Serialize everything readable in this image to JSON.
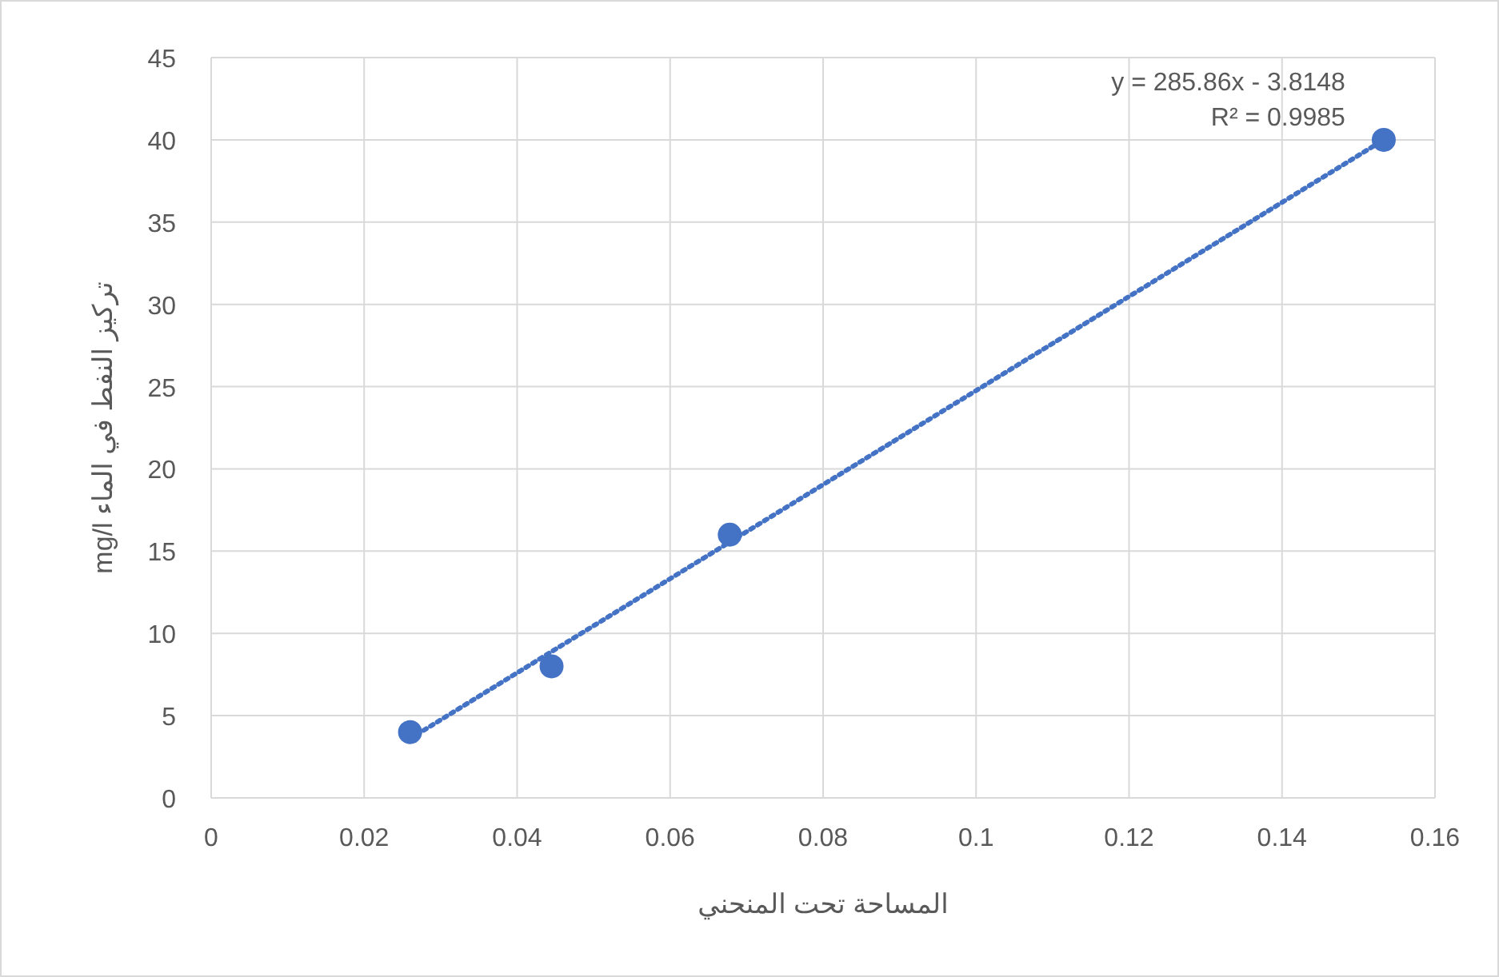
{
  "chart_data": {
    "type": "scatter",
    "xlabel": "المساحة تحت المنحني",
    "ylabel": "تركيز النفط في الماء mg/l",
    "x": [
      0.026,
      0.0445,
      0.0678,
      0.1533
    ],
    "series": [
      {
        "color": "#4472c4",
        "marker": "circle",
        "values": [
          4,
          8,
          16,
          40
        ]
      },
      {
        "type": "line",
        "color": "#4472c4",
        "line_style": "dotted",
        "x": [
          0.026,
          0.1533
        ],
        "values": [
          3.6,
          40.0
        ]
      }
    ],
    "annotations": [
      {
        "text": "y = 285.86x - 3.8148",
        "x": 0.1533,
        "y": 40
      },
      {
        "text": "R² = 0.9985",
        "x": 0.1533,
        "y": 40
      }
    ],
    "xlim": [
      0,
      0.16
    ],
    "xticks": [
      0,
      0.02,
      0.04,
      0.06,
      0.08,
      0.1,
      0.12,
      0.14,
      0.16
    ],
    "ylim": [
      0,
      45
    ],
    "yticks": [
      0,
      5,
      10,
      15,
      20,
      25,
      30,
      35,
      40,
      45
    ],
    "grid": true
  }
}
